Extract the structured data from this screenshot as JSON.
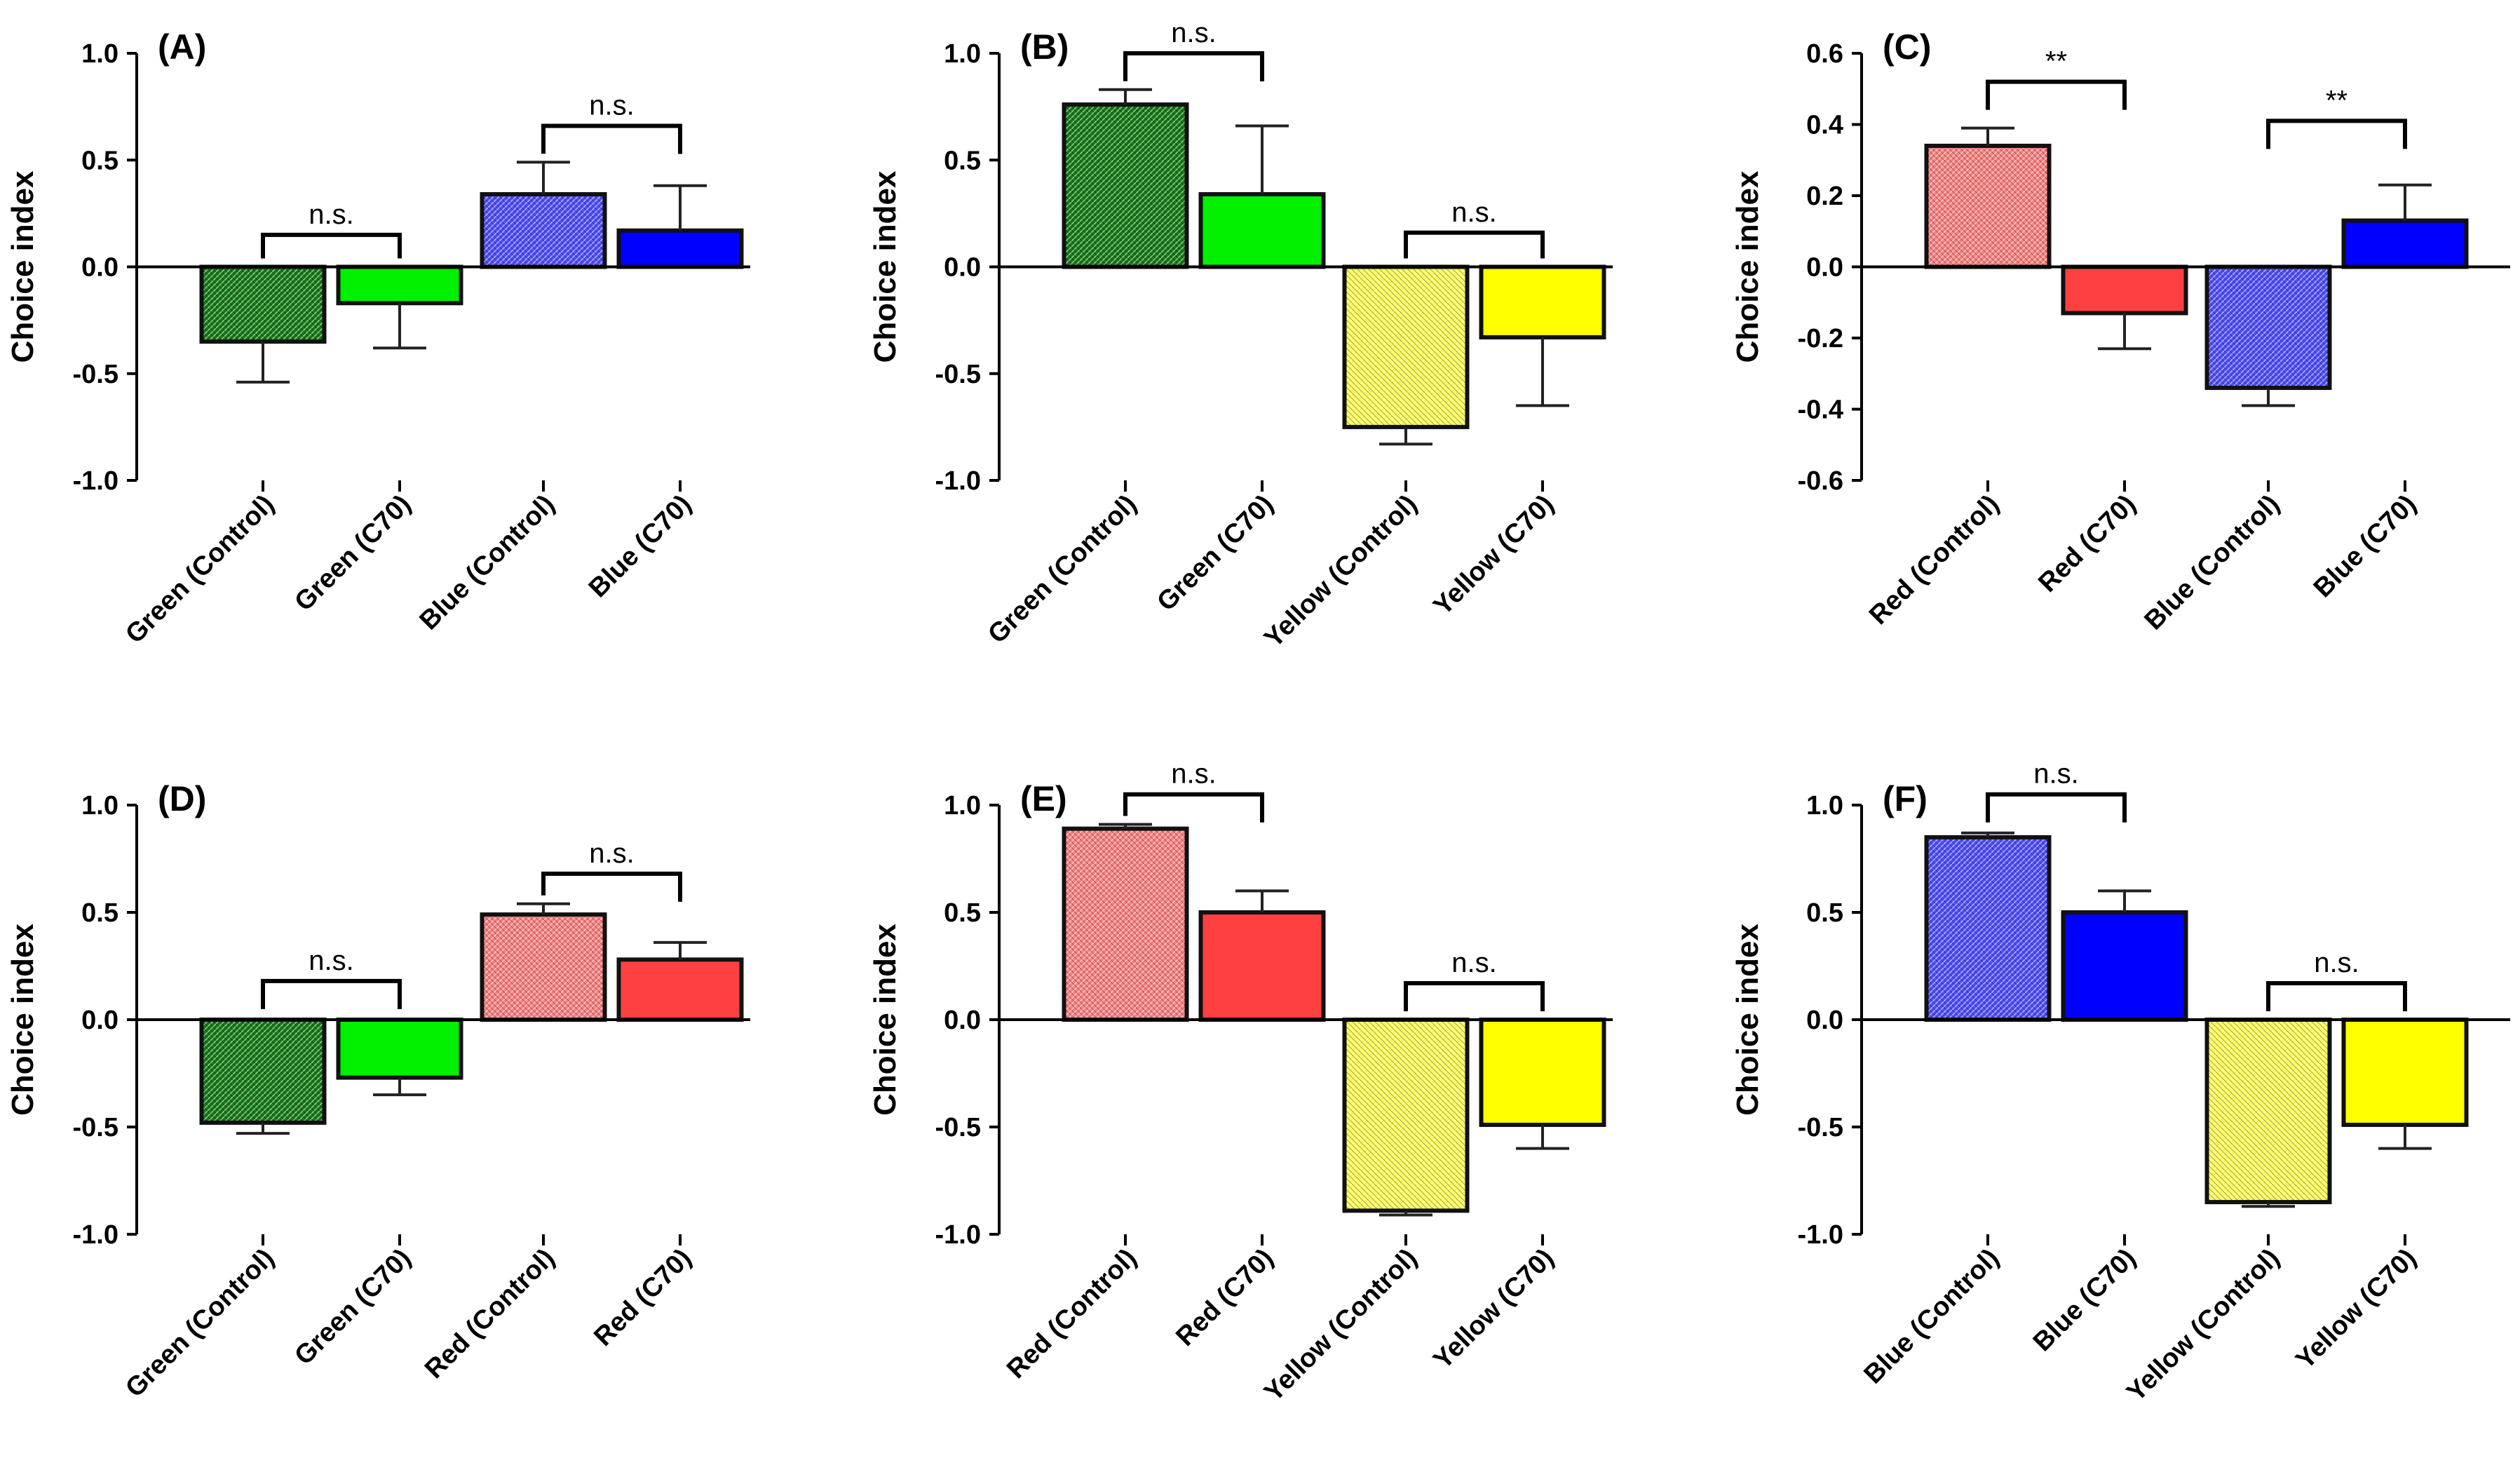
{
  "colors": {
    "dark_green": "#137a13",
    "light_green": "#00f000",
    "blue_control": "#4d4dff",
    "blue_c70": "#0000ff",
    "yellow_control": "#ffff55",
    "yellow_c70": "#ffff00",
    "red_control": "#ff8080",
    "red_c70": "#ff4040",
    "axis": "#000000",
    "error_bar": "#222222"
  },
  "chart_data": [
    {
      "panel": "(A)",
      "type": "bar",
      "ylabel": "Choice index",
      "ylim": [
        -1.0,
        1.0
      ],
      "yticks": [
        "1.0",
        "0.5",
        "0.0",
        "-0.5",
        "-1.0"
      ],
      "ytick_values": [
        1.0,
        0.5,
        0.0,
        -0.5,
        -1.0
      ],
      "categories": [
        "Green (Control)",
        "Green (C70)",
        "Blue (Control)",
        "Blue (C70)"
      ],
      "values": [
        -0.35,
        -0.17,
        0.34,
        0.17
      ],
      "errors": [
        0.19,
        0.21,
        0.15,
        0.21
      ],
      "bar_colors": [
        "#137a13",
        "#00f000",
        "#4d4dff",
        "#0000ff"
      ],
      "hatched": [
        true,
        false,
        true,
        false
      ],
      "significance": [
        {
          "label": "n.s.",
          "pair": [
            0,
            1
          ],
          "level": 0.15
        },
        {
          "label": "n.s.",
          "pair": [
            2,
            3
          ],
          "level": 0.66
        }
      ]
    },
    {
      "panel": "(B)",
      "type": "bar",
      "ylabel": "Choice index",
      "ylim": [
        -1.0,
        1.0
      ],
      "yticks": [
        "1.0",
        "0.5",
        "0.0",
        "-0.5",
        "-1.0"
      ],
      "ytick_values": [
        1.0,
        0.5,
        0.0,
        -0.5,
        -1.0
      ],
      "categories": [
        "Green (Control)",
        "Green (C70)",
        "Yellow (Control)",
        "Yellow (C70)"
      ],
      "values": [
        0.76,
        0.34,
        -0.75,
        -0.33
      ],
      "errors": [
        0.07,
        0.32,
        0.08,
        0.32
      ],
      "bar_colors": [
        "#137a13",
        "#00f000",
        "#ffff55",
        "#ffff00"
      ],
      "hatched": [
        true,
        false,
        true,
        false
      ],
      "significance": [
        {
          "label": "n.s.",
          "pair": [
            0,
            1
          ],
          "level": 1.0
        },
        {
          "label": "n.s.",
          "pair": [
            2,
            3
          ],
          "level": 0.16
        }
      ]
    },
    {
      "panel": "(C)",
      "type": "bar",
      "ylabel": "Choice index",
      "ylim": [
        -0.6,
        0.6
      ],
      "yticks": [
        "0.6",
        "0.4",
        "0.2",
        "0.0",
        "-0.2",
        "-0.4",
        "-0.6"
      ],
      "ytick_values": [
        0.6,
        0.4,
        0.2,
        0.0,
        -0.2,
        -0.4,
        -0.6
      ],
      "categories": [
        "Red (Control)",
        "Red (C70)",
        "Blue (Control)",
        "Blue (C70)"
      ],
      "values": [
        0.34,
        -0.13,
        -0.34,
        0.13
      ],
      "errors": [
        0.05,
        0.1,
        0.05,
        0.1
      ],
      "bar_colors": [
        "#ff8080",
        "#ff4040",
        "#4d4dff",
        "#0000ff"
      ],
      "hatched": [
        true,
        false,
        true,
        false
      ],
      "significance": [
        {
          "label": "**",
          "pair": [
            0,
            1
          ],
          "level": 0.52
        },
        {
          "label": "**",
          "pair": [
            2,
            3
          ],
          "level": 0.41
        }
      ]
    },
    {
      "panel": "(D)",
      "type": "bar",
      "ylabel": "Choice index",
      "ylim": [
        -1.0,
        1.0
      ],
      "yticks": [
        "1.0",
        "0.5",
        "0.0",
        "-0.5",
        "-1.0"
      ],
      "ytick_values": [
        1.0,
        0.5,
        0.0,
        -0.5,
        -1.0
      ],
      "categories": [
        "Green (Control)",
        "Green (C70)",
        "Red (Control)",
        "Red (C70)"
      ],
      "values": [
        -0.48,
        -0.27,
        0.49,
        0.28
      ],
      "errors": [
        0.05,
        0.08,
        0.05,
        0.08
      ],
      "bar_colors": [
        "#137a13",
        "#00f000",
        "#ff8080",
        "#ff4040"
      ],
      "hatched": [
        true,
        false,
        true,
        false
      ],
      "significance": [
        {
          "label": "n.s.",
          "pair": [
            0,
            1
          ],
          "level": 0.18
        },
        {
          "label": "n.s.",
          "pair": [
            2,
            3
          ],
          "level": 0.68
        }
      ]
    },
    {
      "panel": "(E)",
      "type": "bar",
      "ylabel": "Choice index",
      "ylim": [
        -1.0,
        1.0
      ],
      "yticks": [
        "1.0",
        "0.5",
        "0.0",
        "-0.5",
        "-1.0"
      ],
      "ytick_values": [
        1.0,
        0.5,
        0.0,
        -0.5,
        -1.0
      ],
      "categories": [
        "Red (Control)",
        "Red (C70)",
        "Yellow (Control)",
        "Yellow (C70)"
      ],
      "values": [
        0.89,
        0.5,
        -0.89,
        -0.49
      ],
      "errors": [
        0.02,
        0.1,
        0.02,
        0.11
      ],
      "bar_colors": [
        "#ff8080",
        "#ff4040",
        "#ffff55",
        "#ffff00"
      ],
      "hatched": [
        true,
        false,
        true,
        false
      ],
      "significance": [
        {
          "label": "n.s.",
          "pair": [
            0,
            1
          ],
          "level": 1.05
        },
        {
          "label": "n.s.",
          "pair": [
            2,
            3
          ],
          "level": 0.17
        }
      ]
    },
    {
      "panel": "(F)",
      "type": "bar",
      "ylabel": "Choice index",
      "ylim": [
        -1.0,
        1.0
      ],
      "yticks": [
        "1.0",
        "0.5",
        "0.0",
        "-0.5",
        "-1.0"
      ],
      "ytick_values": [
        1.0,
        0.5,
        0.0,
        -0.5,
        -1.0
      ],
      "categories": [
        "Blue (Control)",
        "Blue (C70)",
        "Yellow (Control)",
        "Yellow (C70)"
      ],
      "values": [
        0.85,
        0.5,
        -0.85,
        -0.49
      ],
      "errors": [
        0.02,
        0.1,
        0.02,
        0.11
      ],
      "bar_colors": [
        "#4d4dff",
        "#0000ff",
        "#ffff55",
        "#ffff00"
      ],
      "hatched": [
        true,
        false,
        true,
        false
      ],
      "significance": [
        {
          "label": "n.s.",
          "pair": [
            0,
            1
          ],
          "level": 1.05
        },
        {
          "label": "n.s.",
          "pair": [
            2,
            3
          ],
          "level": 0.17
        }
      ]
    }
  ]
}
